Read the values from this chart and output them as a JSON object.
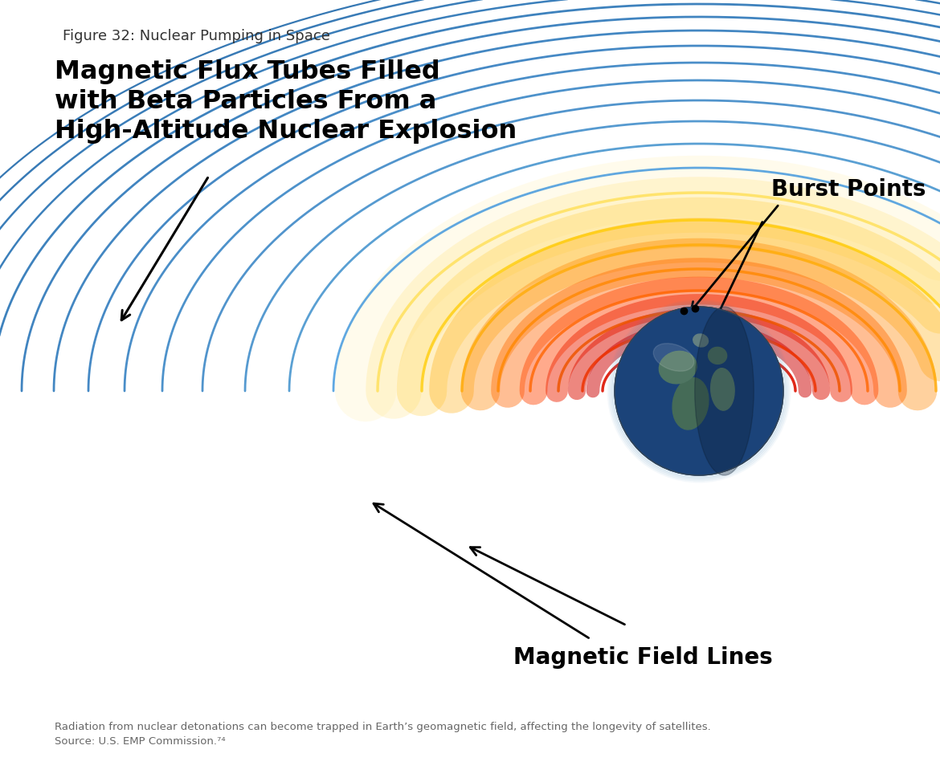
{
  "figure_title": "Figure 32: Nuclear Pumping in Space",
  "main_title_line1": "Magnetic Flux Tubes Filled",
  "main_title_line2": "with Beta Particles From a",
  "main_title_line3": "High-Altitude Nuclear Explosion",
  "label_burst": "Burst Points",
  "label_magnetic": "Magnetic Field Lines",
  "caption_line1": "Radiation from nuclear detonations can become trapped in Earth’s geomagnetic field, affecting the longevity of satellites.",
  "caption_line2": "Source: U.S. EMP Commission.⁷⁴",
  "bg_color": "#ffffff",
  "field_line_color_outer": "#2e7fc2",
  "field_line_color_inner": "#cc3300"
}
